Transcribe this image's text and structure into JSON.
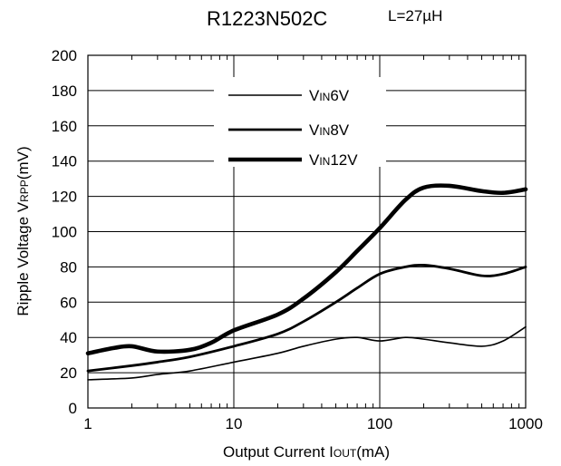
{
  "chart_data": {
    "type": "line",
    "title": "R1223N502C",
    "condition": "L=27µH",
    "xlabel": {
      "main": "Output Current I",
      "sub": "OUT",
      "unit": "(mA)"
    },
    "ylabel": {
      "main": "Ripple Voltage V",
      "sub": "RPP",
      "unit": "(mV)"
    },
    "x_scale": "log",
    "xlim": [
      1,
      1000
    ],
    "ylim": [
      0,
      200
    ],
    "x_ticks": [
      1,
      10,
      100,
      1000
    ],
    "x_tick_labels": [
      "1",
      "10",
      "100",
      "1000"
    ],
    "y_ticks": [
      0,
      20,
      40,
      60,
      80,
      100,
      120,
      140,
      160,
      180,
      200
    ],
    "y_tick_labels": [
      "0",
      "20",
      "40",
      "60",
      "80",
      "100",
      "120",
      "140",
      "160",
      "180",
      "200"
    ],
    "grid": true,
    "legend_position": "top-center",
    "series": [
      {
        "name": "VIN6V",
        "label_main": "V",
        "label_sub": "IN",
        "label_tail": "6V",
        "line_weight": "thin",
        "x": [
          1,
          2,
          3,
          5,
          10,
          20,
          30,
          50,
          70,
          100,
          150,
          200,
          300,
          500,
          700,
          1000
        ],
        "y": [
          16,
          17,
          19,
          21,
          26,
          31,
          35,
          39,
          40,
          38,
          40,
          39,
          37,
          35,
          38,
          46
        ]
      },
      {
        "name": "VIN8V",
        "label_main": "V",
        "label_sub": "IN",
        "label_tail": "8V",
        "line_weight": "medium",
        "x": [
          1,
          2,
          3,
          5,
          10,
          20,
          30,
          50,
          70,
          100,
          150,
          200,
          300,
          500,
          700,
          1000
        ],
        "y": [
          21,
          24,
          26,
          29,
          35,
          42,
          49,
          60,
          68,
          76,
          80,
          81,
          79,
          75,
          76,
          80
        ]
      },
      {
        "name": "VIN12V",
        "label_main": "V",
        "label_sub": "IN",
        "label_tail": "12V",
        "line_weight": "thick",
        "x": [
          1,
          1.5,
          2,
          3,
          5,
          7,
          10,
          20,
          30,
          50,
          70,
          100,
          150,
          200,
          300,
          500,
          700,
          1000
        ],
        "y": [
          31,
          34,
          35,
          32,
          33,
          37,
          44,
          53,
          62,
          77,
          89,
          102,
          118,
          125,
          126,
          123,
          122,
          124
        ]
      }
    ]
  }
}
